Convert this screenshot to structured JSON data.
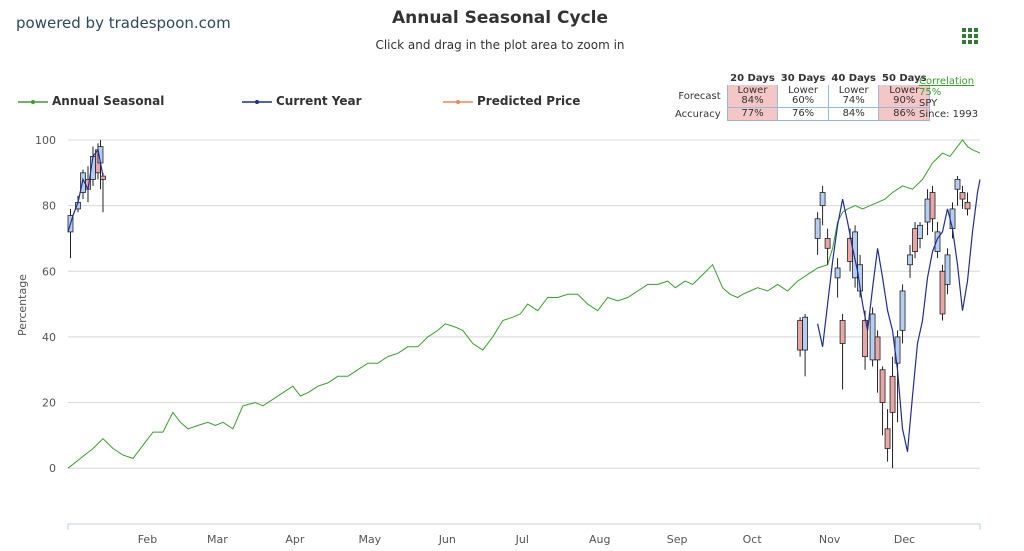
{
  "header": {
    "powered_by": "powered by tradespoon.com",
    "title": "Annual Seasonal Cycle",
    "subtitle": "Click and drag in the plot area to zoom in"
  },
  "legend": {
    "items": [
      {
        "label": "Annual Seasonal",
        "color": "#3a9e2f"
      },
      {
        "label": "Current Year",
        "color": "#1f2f8f"
      },
      {
        "label": "Predicted Price",
        "color": "#e88a57"
      }
    ]
  },
  "forecast_table": {
    "columns": [
      "20 Days",
      "30 Days",
      "40 Days",
      "50 Days"
    ],
    "rows": [
      {
        "label": "Forecast",
        "cells": [
          {
            "line1": "Lower",
            "line2": "84%",
            "highlight": true
          },
          {
            "line1": "Lower",
            "line2": "60%",
            "highlight": false
          },
          {
            "line1": "Lower",
            "line2": "74%",
            "highlight": false
          },
          {
            "line1": "Lower",
            "line2": "90%",
            "highlight": true
          }
        ]
      },
      {
        "label": "Accuracy",
        "cells": [
          {
            "line1": "77%",
            "highlight": true
          },
          {
            "line1": "76%",
            "highlight": false
          },
          {
            "line1": "84%",
            "highlight": false
          },
          {
            "line1": "86%",
            "highlight": true
          }
        ]
      }
    ],
    "highlight_color": "#f4c6c6"
  },
  "correlation": {
    "label": "Correlation",
    "value": "75%",
    "ticker": "SPY",
    "since": "Since: 1993"
  },
  "chart_data": {
    "type": "line",
    "ylabel": "Percentage",
    "xlabel": "",
    "ylim": [
      -17,
      100
    ],
    "xlim": [
      0,
      365
    ],
    "yticks": [
      0,
      20,
      40,
      60,
      80,
      100
    ],
    "grid": true,
    "legend_position": "top",
    "x_ticks": [
      {
        "label": "Feb",
        "pos": 31
      },
      {
        "label": "Mar",
        "pos": 59
      },
      {
        "label": "Apr",
        "pos": 90
      },
      {
        "label": "May",
        "pos": 120
      },
      {
        "label": "Jun",
        "pos": 151
      },
      {
        "label": "Jul",
        "pos": 181
      },
      {
        "label": "Aug",
        "pos": 212
      },
      {
        "label": "Sep",
        "pos": 243
      },
      {
        "label": "Oct",
        "pos": 273
      },
      {
        "label": "Nov",
        "pos": 304
      },
      {
        "label": "Dec",
        "pos": 334
      }
    ],
    "series": [
      {
        "name": "Annual Seasonal",
        "color": "#3a9e2f",
        "x": [
          0,
          5,
          10,
          14,
          18,
          22,
          26,
          28,
          31,
          34,
          38,
          42,
          45,
          48,
          52,
          56,
          59,
          62,
          66,
          70,
          75,
          78,
          82,
          86,
          90,
          93,
          96,
          100,
          104,
          108,
          112,
          116,
          120,
          124,
          128,
          132,
          136,
          140,
          144,
          148,
          151,
          155,
          158,
          162,
          166,
          170,
          174,
          178,
          181,
          184,
          188,
          192,
          196,
          200,
          204,
          208,
          212,
          216,
          220,
          224,
          228,
          232,
          236,
          240,
          243,
          247,
          250,
          254,
          258,
          262,
          265,
          268,
          270,
          273,
          276,
          280,
          284,
          288,
          292,
          296,
          300,
          304,
          306,
          308,
          310,
          312,
          315,
          318,
          321,
          324,
          327,
          330,
          334,
          338,
          342,
          346,
          350,
          353,
          356,
          358,
          360,
          362,
          365
        ],
        "values": [
          0,
          3,
          6,
          9,
          6,
          4,
          3,
          5,
          8,
          11,
          11,
          17,
          14,
          12,
          13,
          14,
          13,
          14,
          12,
          19,
          20,
          19,
          21,
          23,
          25,
          22,
          23,
          25,
          26,
          28,
          28,
          30,
          32,
          32,
          34,
          35,
          37,
          37,
          40,
          42,
          44,
          43,
          42,
          38,
          36,
          40,
          45,
          46,
          47,
          50,
          48,
          52,
          52,
          53,
          53,
          50,
          48,
          52,
          51,
          52,
          54,
          56,
          56,
          57,
          55,
          57,
          56,
          59,
          62,
          55,
          53,
          52,
          53,
          54,
          55,
          54,
          56,
          54,
          57,
          59,
          61,
          62,
          67,
          75,
          78,
          79,
          80,
          79,
          80,
          81,
          82,
          84,
          86,
          85,
          88,
          93,
          96,
          95,
          98,
          100,
          98,
          97,
          96
        ]
      },
      {
        "name": "Current Year",
        "color": "#1f2f8f",
        "x": [
          0,
          2,
          4,
          6,
          8,
          10,
          12,
          14,
          300,
          302,
          304,
          306,
          308,
          310,
          312,
          314,
          316,
          318,
          320,
          322,
          324,
          326,
          328,
          330,
          332,
          334,
          336,
          338,
          340,
          342,
          344,
          346,
          348,
          350,
          352,
          354,
          356,
          358,
          360,
          362,
          364,
          365
        ],
        "values": [
          72,
          77,
          81,
          88,
          85,
          95,
          97,
          89,
          44,
          37,
          50,
          63,
          74,
          82,
          75,
          67,
          60,
          50,
          42,
          55,
          67,
          58,
          48,
          42,
          30,
          12,
          5,
          22,
          38,
          45,
          58,
          66,
          70,
          72,
          79,
          73,
          62,
          48,
          57,
          72,
          84,
          88
        ]
      }
    ],
    "candles": [
      {
        "x": 1,
        "open": 72,
        "close": 77,
        "high": 79,
        "low": 64
      },
      {
        "x": 4,
        "open": 79,
        "close": 81,
        "high": 83,
        "low": 78
      },
      {
        "x": 6,
        "open": 84,
        "close": 90,
        "high": 91,
        "low": 82
      },
      {
        "x": 8,
        "open": 88,
        "close": 85,
        "high": 92,
        "low": 81
      },
      {
        "x": 10,
        "open": 88,
        "close": 95,
        "high": 98,
        "low": 86
      },
      {
        "x": 12,
        "open": 97,
        "close": 90,
        "high": 99,
        "low": 88
      },
      {
        "x": 13,
        "open": 93,
        "close": 98,
        "high": 100,
        "low": 85
      },
      {
        "x": 14,
        "open": 89,
        "close": 88,
        "high": 90,
        "low": 78
      },
      {
        "x": 293,
        "open": 45,
        "close": 36,
        "high": 46,
        "low": 34
      },
      {
        "x": 295,
        "open": 36,
        "close": 46,
        "high": 47,
        "low": 28
      },
      {
        "x": 300,
        "open": 70,
        "close": 76,
        "high": 78,
        "low": 65
      },
      {
        "x": 302,
        "open": 80,
        "close": 84,
        "high": 86,
        "low": 74
      },
      {
        "x": 304,
        "open": 70,
        "close": 67,
        "high": 73,
        "low": 62
      },
      {
        "x": 308,
        "open": 58,
        "close": 61,
        "high": 64,
        "low": 52
      },
      {
        "x": 310,
        "open": 45,
        "close": 38,
        "high": 47,
        "low": 24
      },
      {
        "x": 313,
        "open": 70,
        "close": 63,
        "high": 73,
        "low": 60
      },
      {
        "x": 315,
        "open": 58,
        "close": 72,
        "high": 74,
        "low": 55
      },
      {
        "x": 317,
        "open": 54,
        "close": 62,
        "high": 65,
        "low": 52
      },
      {
        "x": 319,
        "open": 45,
        "close": 34,
        "high": 48,
        "low": 30
      },
      {
        "x": 322,
        "open": 33,
        "close": 47,
        "high": 49,
        "low": 31
      },
      {
        "x": 324,
        "open": 40,
        "close": 33,
        "high": 42,
        "low": 23
      },
      {
        "x": 326,
        "open": 30,
        "close": 20,
        "high": 31,
        "low": 10
      },
      {
        "x": 328,
        "open": 12,
        "close": 6,
        "high": 18,
        "low": 2
      },
      {
        "x": 330,
        "open": 28,
        "close": 17,
        "high": 34,
        "low": 0
      },
      {
        "x": 332,
        "open": 32,
        "close": 40,
        "high": 42,
        "low": 14
      },
      {
        "x": 334,
        "open": 42,
        "close": 54,
        "high": 56,
        "low": 38
      },
      {
        "x": 337,
        "open": 62,
        "close": 65,
        "high": 68,
        "low": 58
      },
      {
        "x": 339,
        "open": 73,
        "close": 66,
        "high": 75,
        "low": 64
      },
      {
        "x": 341,
        "open": 70,
        "close": 74,
        "high": 75,
        "low": 67
      },
      {
        "x": 344,
        "open": 75,
        "close": 82,
        "high": 85,
        "low": 71
      },
      {
        "x": 346,
        "open": 84,
        "close": 76,
        "high": 86,
        "low": 72
      },
      {
        "x": 348,
        "open": 66,
        "close": 72,
        "high": 75,
        "low": 64
      },
      {
        "x": 350,
        "open": 60,
        "close": 47,
        "high": 62,
        "low": 45
      },
      {
        "x": 352,
        "open": 56,
        "close": 65,
        "high": 67,
        "low": 53
      },
      {
        "x": 354,
        "open": 73,
        "close": 79,
        "high": 81,
        "low": 70
      },
      {
        "x": 356,
        "open": 85,
        "close": 88,
        "high": 89,
        "low": 80
      },
      {
        "x": 358,
        "open": 84,
        "close": 82,
        "high": 86,
        "low": 79
      },
      {
        "x": 360,
        "open": 81,
        "close": 79,
        "high": 84,
        "low": 77
      }
    ]
  }
}
